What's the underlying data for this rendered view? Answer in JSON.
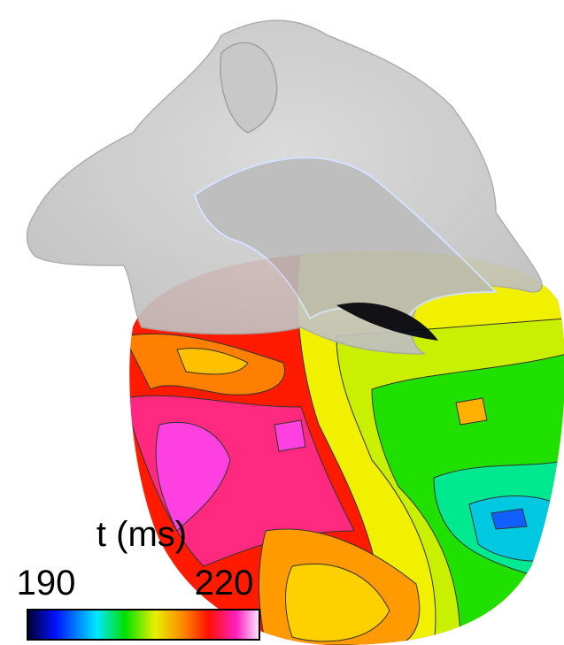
{
  "colorbar": {
    "label": "t (ms)",
    "min": 190,
    "max": 220
  }
}
